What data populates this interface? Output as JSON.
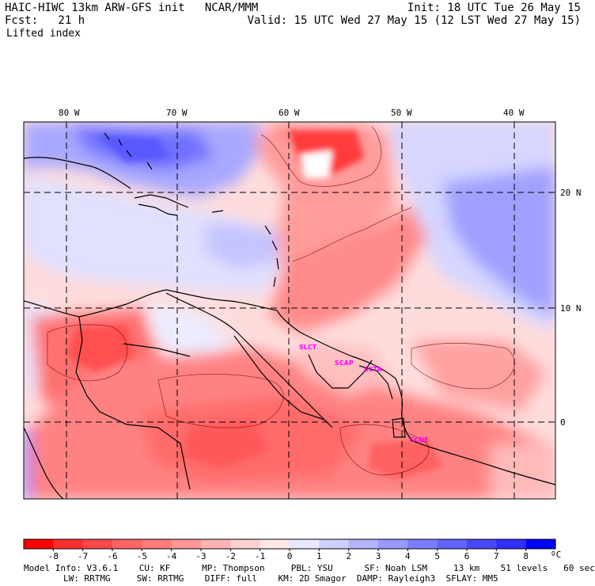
{
  "header": {
    "title_left": "HAIC-HIWC 13km ARW-GFS init   NCAR/MMM",
    "forecast_label": "Fcst:   21 h",
    "field_name": "Lifted index",
    "init_text": "Init: 18 UTC Tue 26 May 15",
    "valid_text": "Valid: 15 UTC Wed 27 May 15 (12 LST Wed 27 May 15)"
  },
  "axes": {
    "lon_labels": [
      "80 W",
      "70 W",
      "60 W",
      "50 W",
      "40 W"
    ],
    "lat_labels": [
      "20 N",
      "10 N",
      "0"
    ]
  },
  "stations": [
    "SLCT",
    "SCAP",
    "SCTA",
    "SCDE"
  ],
  "colorbar": {
    "tick_labels": [
      "-8",
      "-7",
      "-6",
      "-5",
      "-4",
      "-3",
      "-2",
      "-1",
      "0",
      "1",
      "2",
      "3",
      "4",
      "5",
      "6",
      "7",
      "8"
    ],
    "unit": "ºC",
    "colors": [
      "#ff0000",
      "#ff2f2f",
      "#ff4848",
      "#ff6464",
      "#ff7c7c",
      "#ff9898",
      "#ffb4b4",
      "#ffcfcf",
      "#ffe8e8",
      "#e8e8ff",
      "#cfcfff",
      "#b4b4ff",
      "#9898ff",
      "#7c7cff",
      "#6464ff",
      "#4848ff",
      "#2f2fff",
      "#0000ff"
    ]
  },
  "model_info": {
    "line1": "Model Info: V3.6.1    CU: KF      MP: Thompson     PBL: YSU      SF: Noah LSM     13 km    51 levels   60 sec",
    "line2": "LW: RRTMG     SW: RRTMG    DIFF: full    KM: 2D Smagor  DAMP: Rayleigh3  SFLAY: MM5"
  }
}
